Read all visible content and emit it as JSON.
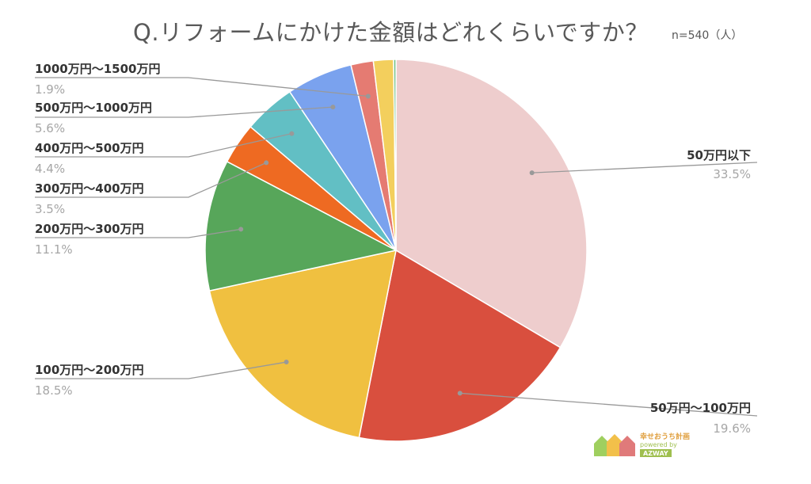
{
  "title": "Q.リフォームにかけた金額はどれくらいですか？",
  "n_label": "n=540（人）",
  "chart_data": {
    "type": "pie",
    "title": "Q.リフォームにかけた金額はどれくらいですか？",
    "slices": [
      {
        "label": "50万円以下",
        "value": 33.5,
        "pct_label": "33.5%",
        "color": "#eecdcd"
      },
      {
        "label": "50万円〜100万円",
        "value": 19.6,
        "pct_label": "19.6%",
        "color": "#d94f3e"
      },
      {
        "label": "100万円〜200万円",
        "value": 18.5,
        "pct_label": "18.5%",
        "color": "#f0c040"
      },
      {
        "label": "200万円〜300万円",
        "value": 11.1,
        "pct_label": "11.1%",
        "color": "#57a65a"
      },
      {
        "label": "300万円〜400万円",
        "value": 3.5,
        "pct_label": "3.5%",
        "color": "#ee6a22"
      },
      {
        "label": "400万円〜500万円",
        "value": 4.4,
        "pct_label": "4.4%",
        "color": "#62bfc4"
      },
      {
        "label": "500万円〜1000万円",
        "value": 5.6,
        "pct_label": "5.6%",
        "color": "#7aa2ee"
      },
      {
        "label": "1000万円〜1500万円",
        "value": 1.9,
        "pct_label": "1.9%",
        "color": "#e57b72"
      },
      {
        "label": "",
        "value": 1.7,
        "pct_label": "",
        "color": "#f3cf5d"
      },
      {
        "label": "",
        "value": 0.2,
        "pct_label": "",
        "color": "#6bbd7e"
      }
    ],
    "legend": "none (callout labels)"
  },
  "logo": {
    "line1": "幸せおうち計画",
    "line2": "powered by",
    "line3": "AZWAY"
  }
}
